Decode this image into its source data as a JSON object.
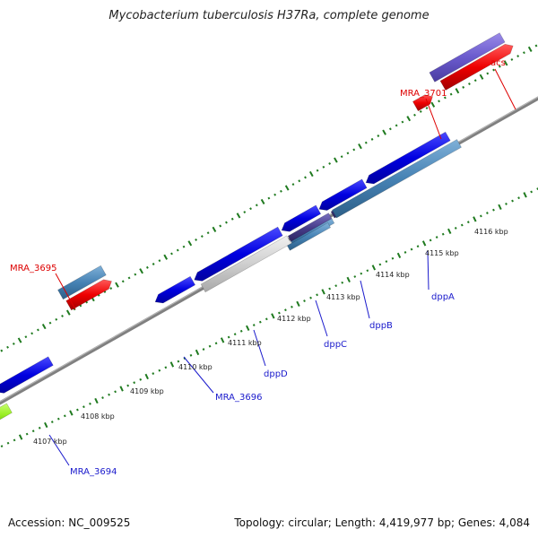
{
  "title": "Mycobacterium tuberculosis H37Ra, complete genome",
  "footer": {
    "accession": "Accession: NC_009525",
    "summary": "Topology: circular; Length: 4,419,977 bp; Genes: 4,084"
  },
  "colors": {
    "backbone": "#808080",
    "tick": "#1f7a1f",
    "label_red": "#dd0000",
    "label_blue": "#1a1acc"
  },
  "ticks": [
    "4107 kbp",
    "4108 kbp",
    "4109 kbp",
    "4110 kbp",
    "4111 kbp",
    "4112 kbp",
    "4113 kbp",
    "4114 kbp",
    "4115 kbp",
    "4116 kbp"
  ],
  "genes": [
    {
      "name": "acs",
      "strand": "outer",
      "color": "red"
    },
    {
      "name": "MRA_3701",
      "strand": "outer",
      "color": "red"
    },
    {
      "name": "MRA_3695",
      "strand": "outer",
      "color": "red"
    },
    {
      "name": "dppA",
      "strand": "inner",
      "color": "blue"
    },
    {
      "name": "dppB",
      "strand": "inner",
      "color": "blue"
    },
    {
      "name": "dppC",
      "strand": "inner",
      "color": "blue"
    },
    {
      "name": "dppD",
      "strand": "inner",
      "color": "blue"
    },
    {
      "name": "MRA_3696",
      "strand": "inner",
      "color": "blue"
    },
    {
      "name": "MRA_3694",
      "strand": "inner",
      "color": "blue"
    }
  ]
}
